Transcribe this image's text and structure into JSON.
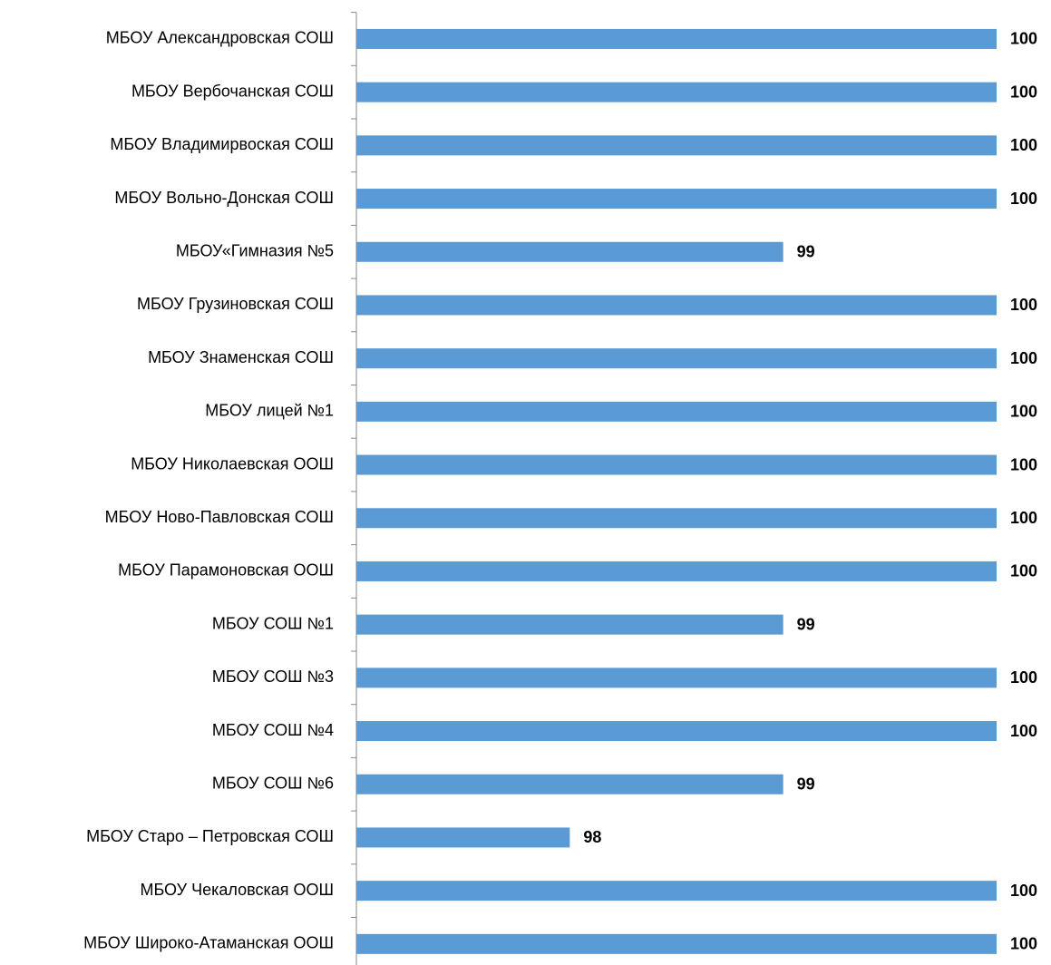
{
  "chart_data": {
    "type": "bar",
    "orientation": "horizontal",
    "categories": [
      "МБОУ Александровская СОШ",
      "МБОУ Вербочанская СОШ",
      "МБОУ Владимирвоская СОШ",
      "МБОУ Вольно-Донская СОШ",
      "МБОУ«Гимназия №5",
      "МБОУ Грузиновская СОШ",
      "МБОУ Знаменская  СОШ",
      "МБОУ лицей  №1",
      "МБОУ Николаевская ООШ",
      "МБОУ Ново-Павловская СОШ",
      "МБОУ Парамоновская ООШ",
      "МБОУ СОШ №1",
      "МБОУ СОШ №3",
      "МБОУ СОШ №4",
      "МБОУ СОШ №6",
      "МБОУ Старо – Петровская СОШ",
      "МБОУ Чекаловская ООШ",
      "МБОУ Широко-Атаманская ООШ"
    ],
    "values": [
      100,
      100,
      100,
      100,
      99,
      100,
      100,
      100,
      100,
      100,
      100,
      99,
      100,
      100,
      99,
      98,
      100,
      100
    ],
    "color": "#5b9bd5",
    "xlim": [
      97,
      100
    ]
  }
}
